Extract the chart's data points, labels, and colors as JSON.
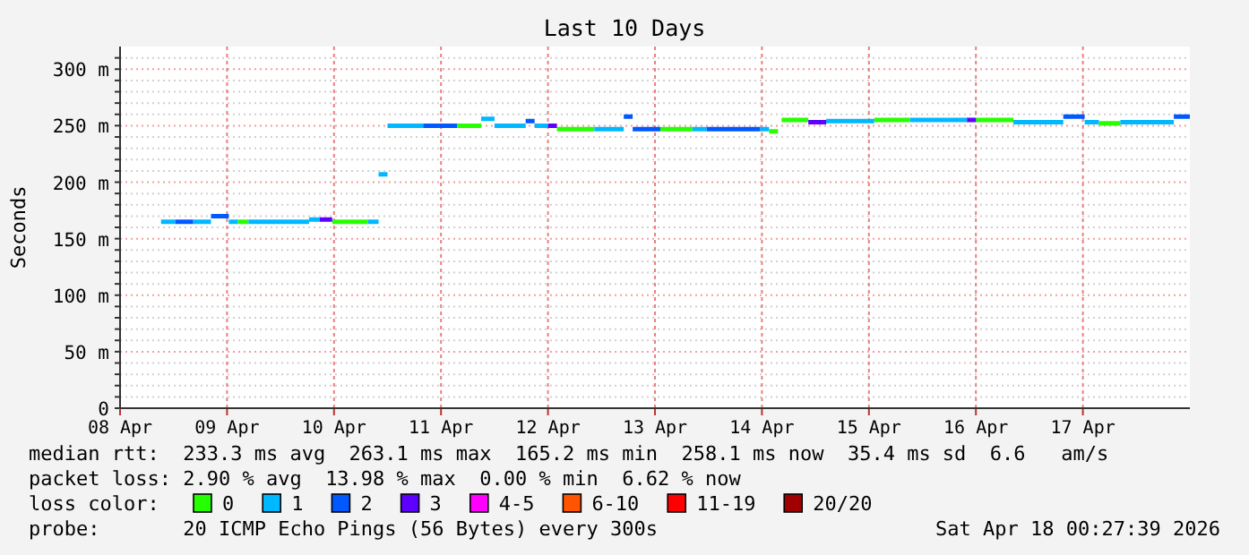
{
  "chart_data": {
    "type": "step",
    "title": "Last 10 Days",
    "ylabel": "Seconds",
    "legend_title": "loss color:",
    "legend": "bottom",
    "grid": true,
    "xlim": [
      "2026-04-08T00:00",
      "2026-04-18T00:00"
    ],
    "xticks": [
      {
        "value": "2026-04-08",
        "label": "08 Apr"
      },
      {
        "value": "2026-04-09",
        "label": "09 Apr"
      },
      {
        "value": "2026-04-10",
        "label": "10 Apr"
      },
      {
        "value": "2026-04-11",
        "label": "11 Apr"
      },
      {
        "value": "2026-04-12",
        "label": "12 Apr"
      },
      {
        "value": "2026-04-13",
        "label": "13 Apr"
      },
      {
        "value": "2026-04-14",
        "label": "14 Apr"
      },
      {
        "value": "2026-04-15",
        "label": "15 Apr"
      },
      {
        "value": "2026-04-16",
        "label": "16 Apr"
      },
      {
        "value": "2026-04-17",
        "label": "17 Apr"
      }
    ],
    "ylim": [
      0,
      320
    ],
    "yticks": [
      {
        "value": 0,
        "label": "0"
      },
      {
        "value": 10,
        "label": null
      },
      {
        "value": 20,
        "label": null
      },
      {
        "value": 30,
        "label": null
      },
      {
        "value": 40,
        "label": null
      },
      {
        "value": 50,
        "label": "50 m"
      },
      {
        "value": 60,
        "label": null
      },
      {
        "value": 70,
        "label": null
      },
      {
        "value": 80,
        "label": null
      },
      {
        "value": 90,
        "label": null
      },
      {
        "value": 100,
        "label": "100 m"
      },
      {
        "value": 110,
        "label": null
      },
      {
        "value": 120,
        "label": null
      },
      {
        "value": 130,
        "label": null
      },
      {
        "value": 140,
        "label": null
      },
      {
        "value": 150,
        "label": "150 m"
      },
      {
        "value": 160,
        "label": null
      },
      {
        "value": 170,
        "label": null
      },
      {
        "value": 180,
        "label": null
      },
      {
        "value": 190,
        "label": null
      },
      {
        "value": 200,
        "label": "200 m"
      },
      {
        "value": 210,
        "label": null
      },
      {
        "value": 220,
        "label": null
      },
      {
        "value": 230,
        "label": null
      },
      {
        "value": 240,
        "label": null
      },
      {
        "value": 250,
        "label": "250 m"
      },
      {
        "value": 260,
        "label": null
      },
      {
        "value": 270,
        "label": null
      },
      {
        "value": 280,
        "label": null
      },
      {
        "value": 290,
        "label": null
      },
      {
        "value": 300,
        "label": "300 m"
      },
      {
        "value": 310,
        "label": null
      }
    ],
    "series": [
      {
        "name": "0",
        "color": "#26ff00",
        "x": [
          "2026-04-09T02:24",
          "2026-04-09T04:48",
          null,
          "2026-04-09T23:36",
          "2026-04-10T07:36",
          null,
          "2026-04-11T03:36",
          "2026-04-11T09:00",
          null,
          "2026-04-12T02:00",
          "2026-04-12T10:24",
          null,
          "2026-04-13T01:12",
          "2026-04-13T08:24",
          null,
          "2026-04-14T01:36",
          "2026-04-14T03:36",
          null,
          "2026-04-14T04:24",
          "2026-04-14T10:24",
          null,
          "2026-04-15T01:12",
          "2026-04-15T09:12",
          null,
          "2026-04-16T00:00",
          "2026-04-16T08:24",
          null,
          "2026-04-17T03:36",
          "2026-04-17T08:24"
        ],
        "values": [
          165,
          165,
          null,
          165,
          165,
          null,
          250,
          250,
          null,
          247,
          247,
          null,
          247,
          247,
          null,
          245,
          245,
          null,
          255,
          255,
          null,
          255,
          255,
          null,
          255,
          255,
          null,
          252,
          252
        ]
      },
      {
        "name": "1",
        "color": "#00b8ff",
        "x": [
          "2026-04-08T09:12",
          "2026-04-08T12:24",
          null,
          "2026-04-08T16:24",
          "2026-04-08T20:24",
          null,
          "2026-04-09T00:24",
          "2026-04-09T02:24",
          null,
          "2026-04-09T04:48",
          "2026-04-09T18:24",
          null,
          "2026-04-09T18:24",
          "2026-04-09T20:48",
          null,
          "2026-04-10T07:36",
          "2026-04-10T10:00",
          null,
          "2026-04-10T10:00",
          "2026-04-10T12:00",
          null,
          "2026-04-10T12:00",
          "2026-04-10T20:00",
          null,
          "2026-04-11T09:00",
          "2026-04-11T12:00",
          null,
          "2026-04-11T12:00",
          "2026-04-11T19:00",
          null,
          "2026-04-11T21:00",
          "2026-04-12T00:00",
          null,
          "2026-04-12T10:24",
          "2026-04-12T17:00",
          null,
          "2026-04-13T08:24",
          "2026-04-13T11:36",
          null,
          "2026-04-13T23:36",
          "2026-04-14T01:36",
          null,
          "2026-04-14T14:24",
          "2026-04-15T01:12",
          null,
          "2026-04-15T09:12",
          "2026-04-15T22:00",
          null,
          "2026-04-16T08:24",
          "2026-04-16T19:36",
          null,
          "2026-04-17T00:24",
          "2026-04-17T03:36",
          null,
          "2026-04-17T08:24",
          "2026-04-17T20:24"
        ],
        "values": [
          165,
          165,
          null,
          165,
          165,
          null,
          165,
          165,
          null,
          165,
          165,
          null,
          167,
          167,
          null,
          165,
          165,
          null,
          207,
          207,
          null,
          250,
          250,
          null,
          256,
          256,
          null,
          250,
          250,
          null,
          250,
          250,
          null,
          247,
          247,
          null,
          247,
          247,
          null,
          247,
          247,
          null,
          254,
          254,
          null,
          255,
          255,
          null,
          253,
          253,
          null,
          253,
          253,
          null,
          253,
          253
        ]
      },
      {
        "name": "2",
        "color": "#0059ff",
        "x": [
          "2026-04-08T12:24",
          "2026-04-08T16:24",
          null,
          "2026-04-08T20:24",
          "2026-04-09T00:24",
          null,
          "2026-04-10T20:00",
          "2026-04-11T03:36",
          null,
          "2026-04-11T19:00",
          "2026-04-11T21:00",
          null,
          "2026-04-12T17:00",
          "2026-04-12T19:00",
          null,
          "2026-04-12T19:00",
          "2026-04-13T01:12",
          null,
          "2026-04-13T11:36",
          "2026-04-13T23:36",
          null,
          "2026-04-16T19:36",
          "2026-04-17T00:24",
          null,
          "2026-04-17T20:24",
          "2026-04-18T00:00"
        ],
        "values": [
          165,
          165,
          null,
          170,
          170,
          null,
          250,
          250,
          null,
          254,
          254,
          null,
          258,
          258,
          null,
          247,
          247,
          null,
          247,
          247,
          null,
          258,
          258,
          null,
          258,
          258
        ]
      },
      {
        "name": "3",
        "color": "#5e00ff",
        "x": [
          "2026-04-09T20:48",
          "2026-04-09T23:36",
          null,
          "2026-04-12T00:00",
          "2026-04-12T02:00",
          null,
          "2026-04-14T10:24",
          "2026-04-14T14:24",
          null,
          "2026-04-15T22:00",
          "2026-04-16T00:00"
        ],
        "values": [
          167,
          167,
          null,
          250,
          250,
          null,
          253,
          253,
          null,
          255,
          255
        ]
      },
      {
        "name": "4-5",
        "color": "#ff00fe"
      },
      {
        "name": "6-10",
        "color": "#ff5500"
      },
      {
        "name": "11-19",
        "color": "#ff0000"
      },
      {
        "name": "20/20",
        "color": "#a10000"
      }
    ],
    "annotations": [
      "median rtt:  233.3 ms avg  263.1 ms max  165.2 ms min  258.1 ms now  35.4 ms sd  6.6   am/s",
      "packet loss: 2.90 % avg  13.98 % max  0.00 % min  6.62 % now",
      "probe:       20 ICMP Echo Pings (56 Bytes) every 300s",
      "Sat Apr 18 00:27:39 2026"
    ]
  }
}
